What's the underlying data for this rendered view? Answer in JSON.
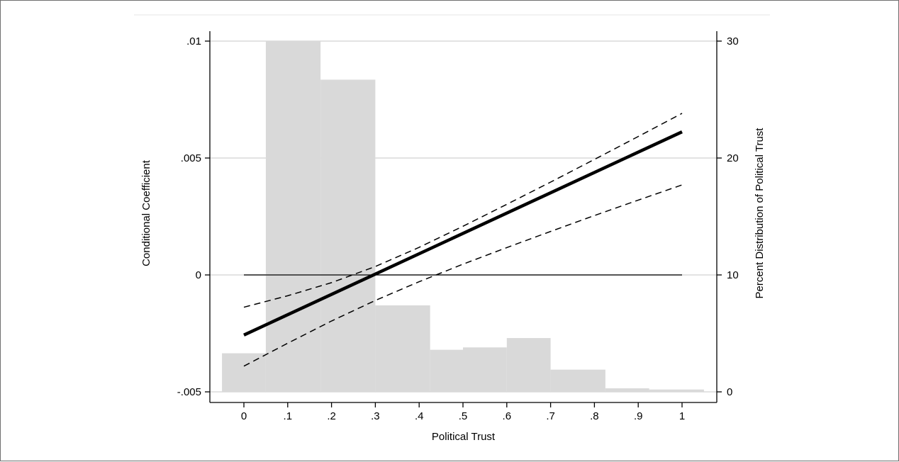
{
  "chart_data": {
    "type": "line",
    "title": "",
    "xlabel": "Political Trust",
    "ylabel": "Conditional Coefficient",
    "y2label": "Percent Distribution of Political Trust",
    "xlim": [
      -0.05,
      1.05
    ],
    "ylim": [
      -0.005,
      0.01
    ],
    "y2lim": [
      0,
      30
    ],
    "x_ticks": [
      0,
      0.1,
      0.2,
      0.3,
      0.4,
      0.5,
      0.6,
      0.7,
      0.8,
      0.9,
      1
    ],
    "x_tick_labels": [
      "0",
      ".1",
      ".2",
      ".3",
      ".4",
      ".5",
      ".6",
      ".7",
      ".8",
      ".9",
      "1"
    ],
    "y_ticks": [
      -0.005,
      0,
      0.005,
      0.01
    ],
    "y_tick_labels": [
      "-.005",
      "0",
      ".005",
      ".01"
    ],
    "y2_ticks": [
      0,
      10,
      20,
      30
    ],
    "y2_tick_labels": [
      "0",
      "10",
      "20",
      "30"
    ],
    "grid": true,
    "histogram": {
      "axis": "y2",
      "bin_edges": [
        -0.05,
        0.05,
        0.175,
        0.3,
        0.425,
        0.5,
        0.6,
        0.7,
        0.825,
        0.925,
        1.05
      ],
      "values": [
        3.3,
        30,
        26.7,
        7.4,
        3.6,
        3.8,
        4.6,
        1.9,
        0.3,
        0.2
      ],
      "color": "#d9d9d9"
    },
    "series": [
      {
        "values_x": [
          0,
          1
        ],
        "values_y": [
          -0.00257,
          0.00612
        ],
        "style": "solid-thick",
        "color": "#000000"
      },
      {
        "values_x": [
          0,
          0.1,
          0.2,
          0.3,
          0.4,
          0.5,
          0.6,
          0.7,
          0.8,
          0.9,
          1
        ],
        "values_y": [
          -0.00138,
          -0.00089,
          -0.00033,
          0.00036,
          0.00118,
          0.00208,
          0.00302,
          0.00397,
          0.00494,
          0.00592,
          0.00691
        ],
        "style": "dashed",
        "color": "#000000"
      },
      {
        "values_x": [
          0,
          0.1,
          0.2,
          0.3,
          0.4,
          0.5,
          0.6,
          0.7,
          0.8,
          0.9,
          1
        ],
        "values_y": [
          -0.0039,
          -0.00292,
          -0.00197,
          -0.00109,
          -0.00029,
          0.00046,
          0.00117,
          0.00186,
          0.00254,
          0.0032,
          0.00385
        ],
        "style": "dashed",
        "color": "#000000"
      },
      {
        "values_x": [
          0,
          1
        ],
        "values_y": [
          0,
          0
        ],
        "style": "solid-thin",
        "color": "#000000"
      }
    ]
  }
}
